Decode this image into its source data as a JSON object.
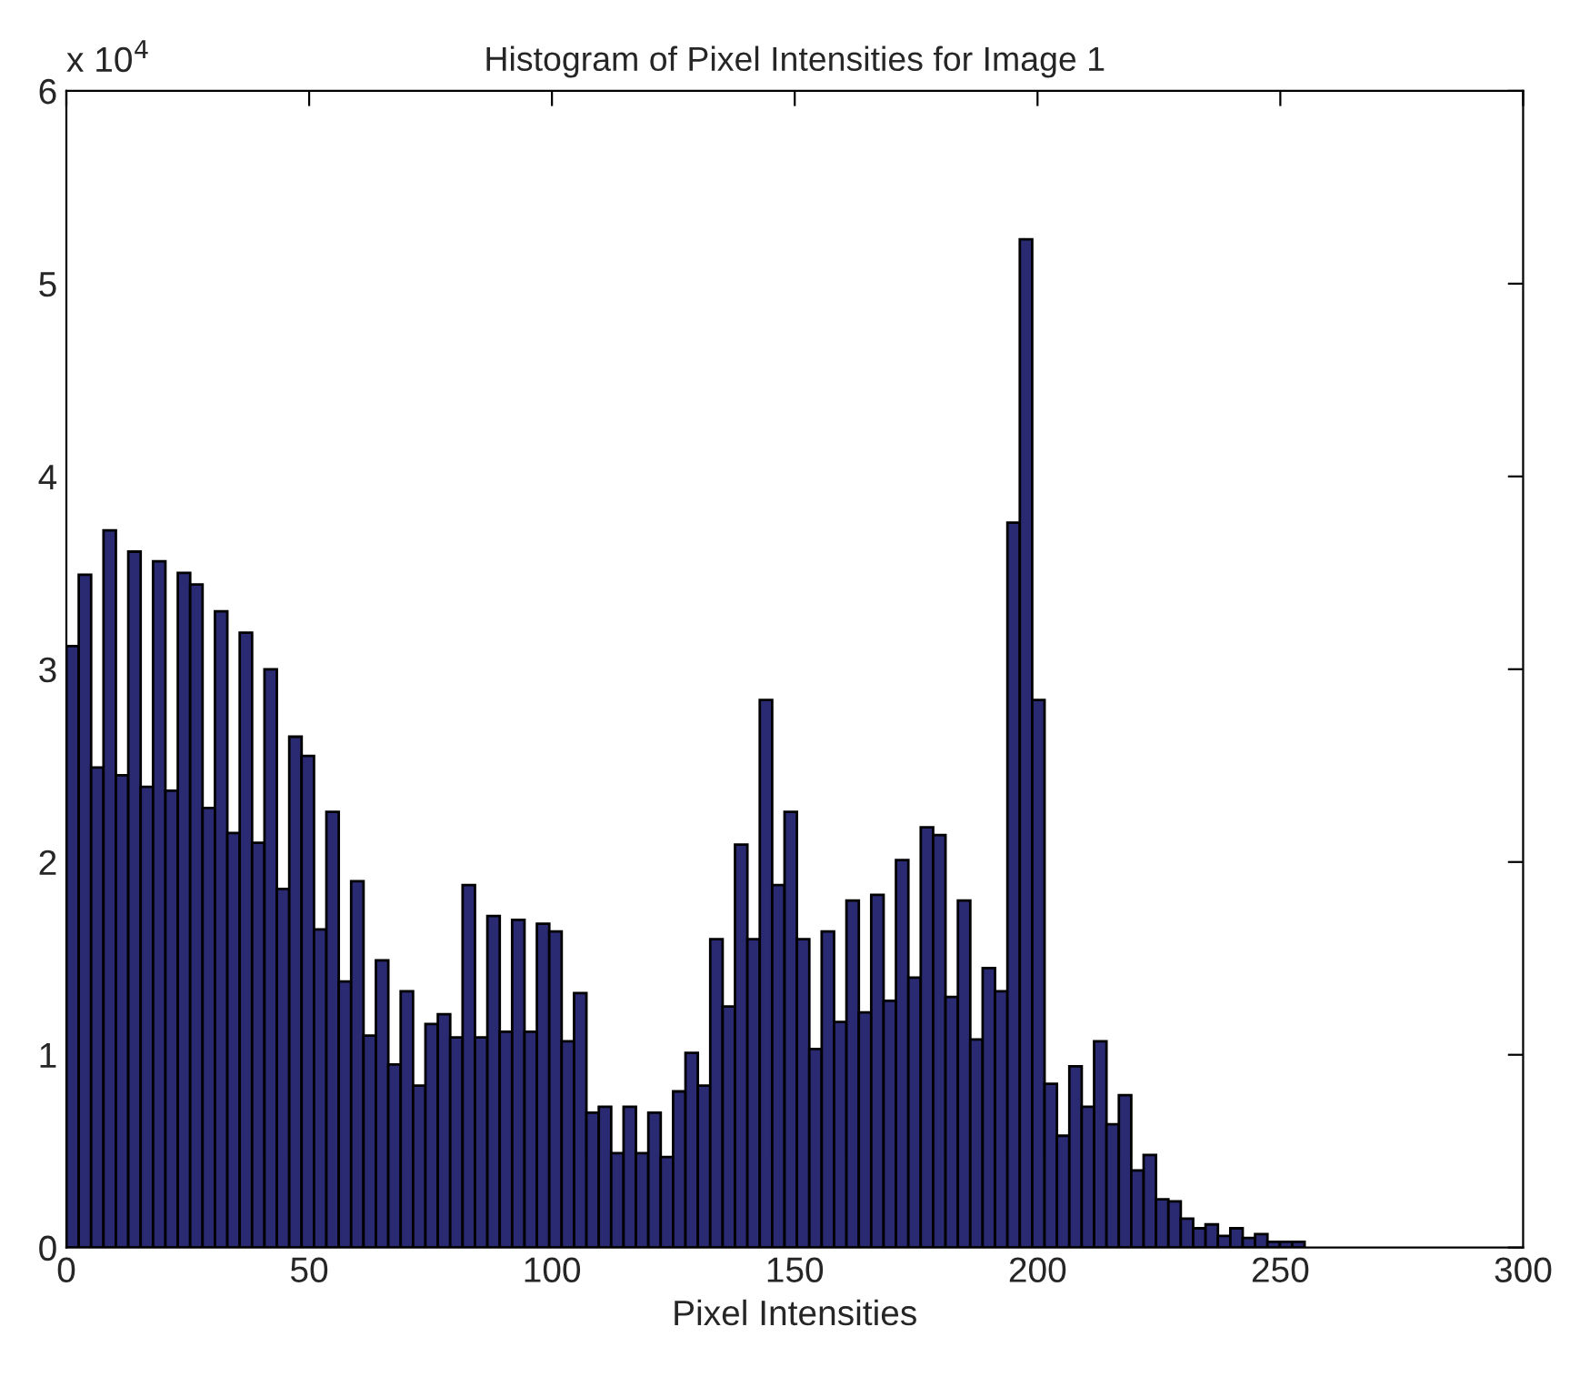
{
  "chart_data": {
    "type": "histogram",
    "title": "Histogram of Pixel Intensities for Image 1",
    "xlabel": "Pixel Intensities",
    "annotations": [
      "x 10$^{4}$"
    ],
    "bins": [
      0,
      2.55,
      5.1,
      7.65,
      10.2,
      12.75,
      15.3,
      17.85,
      20.4,
      22.95,
      25.5,
      28.05,
      30.6,
      33.15,
      35.7,
      38.25,
      40.8,
      43.35,
      45.9,
      48.45,
      51,
      53.55,
      56.1,
      58.65,
      61.2,
      63.75,
      66.3,
      68.85,
      71.4,
      73.95,
      76.5,
      79.05,
      81.6,
      84.15,
      86.7,
      89.25,
      91.8,
      94.35,
      96.9,
      99.45,
      102,
      104.55,
      107.1,
      109.65,
      112.2,
      114.75,
      117.3,
      119.85,
      122.4,
      124.95,
      127.5,
      130.05,
      132.6,
      135.15,
      137.7,
      140.25,
      142.8,
      145.35,
      147.9,
      150.45,
      153,
      155.55,
      158.1,
      160.65,
      163.2,
      165.75,
      168.3,
      170.85,
      173.4,
      175.95,
      178.5,
      181.05,
      183.6,
      186.15,
      188.7,
      191.25,
      193.8,
      196.35,
      198.9,
      201.45,
      204,
      206.55,
      209.1,
      211.65,
      214.2,
      216.75,
      219.3,
      221.85,
      224.4,
      226.95,
      229.5,
      232.05,
      234.6,
      237.15,
      239.7,
      242.25,
      244.8,
      247.35,
      249.9,
      252.45,
      255
    ],
    "values": [
      3.12,
      3.49,
      2.49,
      3.72,
      2.45,
      3.61,
      2.39,
      3.56,
      2.37,
      3.5,
      3.44,
      2.28,
      3.3,
      2.15,
      3.19,
      2.1,
      3.0,
      1.86,
      2.65,
      2.55,
      1.65,
      2.26,
      1.38,
      1.9,
      1.1,
      1.49,
      0.95,
      1.33,
      0.84,
      1.16,
      1.21,
      1.09,
      1.88,
      1.09,
      1.72,
      1.12,
      1.7,
      1.12,
      1.68,
      1.64,
      1.07,
      1.32,
      0.7,
      0.73,
      0.49,
      0.73,
      0.49,
      0.7,
      0.47,
      0.81,
      1.01,
      0.84,
      1.6,
      1.25,
      2.09,
      1.6,
      2.84,
      1.88,
      2.26,
      1.6,
      1.03,
      1.64,
      1.17,
      1.8,
      1.22,
      1.83,
      1.28,
      2.01,
      1.4,
      2.18,
      2.14,
      1.3,
      1.8,
      1.08,
      1.45,
      1.33,
      3.76,
      5.23,
      2.84,
      0.85,
      0.58,
      0.94,
      0.73,
      1.07,
      0.64,
      0.79,
      0.4,
      0.48,
      0.25,
      0.24,
      0.15,
      0.1,
      0.12,
      0.06,
      0.1,
      0.05,
      0.07,
      0.03,
      0.03,
      0.03
    ],
    "color": "#2a2a72",
    "xlim": [
      0,
      300
    ],
    "xticks": [
      0,
      50,
      100,
      150,
      200,
      250,
      300
    ],
    "ylim": [
      0,
      6
    ],
    "yticks": [
      0,
      1,
      2,
      3,
      4,
      5,
      6
    ],
    "grid": false
  }
}
